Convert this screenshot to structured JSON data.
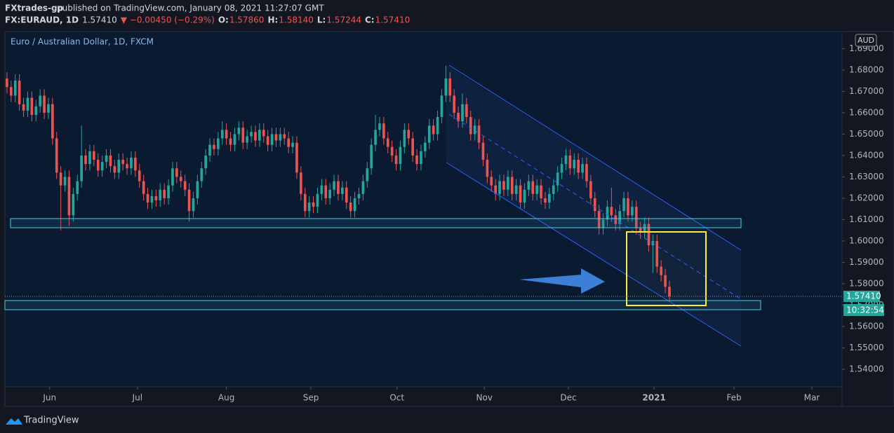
{
  "header": {
    "author": "FXtrades-gp",
    "published": "published on TradingView.com, January 08, 2021 11:27:07 GMT",
    "symbol": "FX:EURAUD, 1D",
    "last": "1.57410",
    "change": "▼ −0.00450 (−0.29%)",
    "o_label": "O:",
    "o": "1.57860",
    "h_label": "H:",
    "h": "1.58140",
    "l_label": "L:",
    "l": "1.57244",
    "c_label": "C:",
    "c": "1.57410"
  },
  "footer": {
    "brand": "TradingView"
  },
  "chart_data": {
    "type": "candlestick",
    "title": "Euro / Australian Dollar, 1D, FXCM",
    "currency": "AUD",
    "last_price_label": "1.57410",
    "countdown": "10:32:54",
    "up_color": "#26a69a",
    "down_color": "#ef5350",
    "xlim": [
      -0.5,
      201.7
    ],
    "xticks": [
      {
        "value": 10.3,
        "label": "Jun"
      },
      {
        "value": 31.5,
        "label": "Jul"
      },
      {
        "value": 53,
        "label": "Aug"
      },
      {
        "value": 73.4,
        "label": "Sep"
      },
      {
        "value": 94.2,
        "label": "Oct"
      },
      {
        "value": 115.3,
        "label": "Nov"
      },
      {
        "value": 135.6,
        "label": "Dec"
      },
      {
        "value": 156.3,
        "label": "2021"
      },
      {
        "value": 175.6,
        "label": "Feb"
      },
      {
        "value": 194.4,
        "label": "Mar"
      }
    ],
    "ylim": [
      1.5318,
      1.698
    ],
    "yticks": [
      {
        "value": 1.54,
        "label": "1.54000"
      },
      {
        "value": 1.55,
        "label": "1.55000"
      },
      {
        "value": 1.56,
        "label": "1.56000"
      },
      {
        "value": 1.57,
        "label": "1.57000"
      },
      {
        "value": 1.58,
        "label": "1.58000"
      },
      {
        "value": 1.59,
        "label": "1.59000"
      },
      {
        "value": 1.6,
        "label": "1.60000"
      },
      {
        "value": 1.61,
        "label": "1.61000"
      },
      {
        "value": 1.62,
        "label": "1.62000"
      },
      {
        "value": 1.63,
        "label": "1.63000"
      },
      {
        "value": 1.64,
        "label": "1.64000"
      },
      {
        "value": 1.65,
        "label": "1.65000"
      },
      {
        "value": 1.66,
        "label": "1.66000"
      },
      {
        "value": 1.67,
        "label": "1.67000"
      },
      {
        "value": 1.68,
        "label": "1.68000"
      },
      {
        "value": 1.69,
        "label": "1.69000"
      }
    ],
    "open": [
      1.676,
      1.672,
      1.668,
      1.675,
      1.664,
      1.661,
      1.667,
      1.659,
      1.663,
      1.668,
      1.66,
      1.664,
      1.648,
      1.632,
      1.626,
      1.63,
      1.612,
      1.622,
      1.628,
      1.64,
      1.636,
      1.642,
      1.638,
      1.633,
      1.637,
      1.64,
      1.635,
      1.632,
      1.638,
      1.636,
      1.634,
      1.639,
      1.633,
      1.628,
      1.622,
      1.618,
      1.621,
      1.619,
      1.624,
      1.62,
      1.626,
      1.634,
      1.63,
      1.628,
      1.624,
      1.614,
      1.62,
      1.628,
      1.634,
      1.64,
      1.645,
      1.643,
      1.648,
      1.652,
      1.648,
      1.645,
      1.65,
      1.653,
      1.646,
      1.649,
      1.651,
      1.647,
      1.652,
      1.649,
      1.645,
      1.65,
      1.647,
      1.65,
      1.648,
      1.644,
      1.646,
      1.632,
      1.622,
      1.614,
      1.618,
      1.616,
      1.622,
      1.626,
      1.62,
      1.624,
      1.628,
      1.622,
      1.625,
      1.618,
      1.614,
      1.62,
      1.622,
      1.628,
      1.634,
      1.645,
      1.652,
      1.655,
      1.648,
      1.644,
      1.64,
      1.636,
      1.644,
      1.652,
      1.648,
      1.64,
      1.636,
      1.642,
      1.646,
      1.654,
      1.65,
      1.658,
      1.668,
      1.676,
      1.668,
      1.66,
      1.656,
      1.664,
      1.658,
      1.65,
      1.654,
      1.646,
      1.638,
      1.63,
      1.626,
      1.622,
      1.628,
      1.624,
      1.63,
      1.622,
      1.626,
      1.618,
      1.624,
      1.628,
      1.622,
      1.626,
      1.62,
      1.618,
      1.622,
      1.626,
      1.632,
      1.636,
      1.64,
      1.634,
      1.638,
      1.632,
      1.636,
      1.628,
      1.62,
      1.614,
      1.606,
      1.61,
      1.616,
      1.612,
      1.608,
      1.614,
      1.62,
      1.612,
      1.616,
      1.606,
      1.604,
      1.608,
      1.598,
      1.6,
      1.588,
      1.584,
      1.5786
    ],
    "high": [
      1.679,
      1.675,
      1.678,
      1.678,
      1.667,
      1.67,
      1.67,
      1.666,
      1.671,
      1.671,
      1.667,
      1.667,
      1.651,
      1.635,
      1.633,
      1.633,
      1.625,
      1.631,
      1.654,
      1.643,
      1.645,
      1.645,
      1.641,
      1.64,
      1.643,
      1.643,
      1.638,
      1.641,
      1.641,
      1.639,
      1.642,
      1.642,
      1.636,
      1.631,
      1.625,
      1.624,
      1.624,
      1.627,
      1.627,
      1.629,
      1.637,
      1.637,
      1.633,
      1.631,
      1.627,
      1.623,
      1.631,
      1.637,
      1.643,
      1.648,
      1.648,
      1.651,
      1.656,
      1.655,
      1.651,
      1.653,
      1.656,
      1.656,
      1.652,
      1.654,
      1.654,
      1.655,
      1.655,
      1.652,
      1.653,
      1.653,
      1.653,
      1.653,
      1.651,
      1.649,
      1.649,
      1.635,
      1.625,
      1.621,
      1.621,
      1.625,
      1.629,
      1.629,
      1.627,
      1.631,
      1.631,
      1.628,
      1.628,
      1.621,
      1.623,
      1.625,
      1.631,
      1.637,
      1.648,
      1.659,
      1.658,
      1.658,
      1.651,
      1.647,
      1.643,
      1.647,
      1.655,
      1.655,
      1.651,
      1.643,
      1.645,
      1.649,
      1.657,
      1.657,
      1.661,
      1.671,
      1.682,
      1.679,
      1.671,
      1.663,
      1.669,
      1.667,
      1.661,
      1.657,
      1.657,
      1.649,
      1.641,
      1.633,
      1.629,
      1.631,
      1.631,
      1.633,
      1.633,
      1.629,
      1.629,
      1.627,
      1.631,
      1.631,
      1.629,
      1.629,
      1.623,
      1.625,
      1.629,
      1.635,
      1.639,
      1.643,
      1.643,
      1.641,
      1.641,
      1.639,
      1.639,
      1.631,
      1.623,
      1.617,
      1.613,
      1.619,
      1.625,
      1.615,
      1.617,
      1.623,
      1.623,
      1.619,
      1.619,
      1.609,
      1.611,
      1.611,
      1.603,
      1.603,
      1.591,
      1.587,
      1.5814
    ],
    "low": [
      1.669,
      1.665,
      1.665,
      1.661,
      1.658,
      1.658,
      1.656,
      1.656,
      1.66,
      1.657,
      1.657,
      1.645,
      1.629,
      1.605,
      1.623,
      1.607,
      1.609,
      1.619,
      1.625,
      1.633,
      1.633,
      1.635,
      1.63,
      1.63,
      1.634,
      1.632,
      1.629,
      1.629,
      1.633,
      1.631,
      1.631,
      1.63,
      1.625,
      1.619,
      1.615,
      1.615,
      1.616,
      1.616,
      1.617,
      1.617,
      1.623,
      1.627,
      1.625,
      1.621,
      1.609,
      1.611,
      1.617,
      1.625,
      1.631,
      1.637,
      1.64,
      1.64,
      1.645,
      1.645,
      1.642,
      1.642,
      1.647,
      1.643,
      1.643,
      1.646,
      1.644,
      1.644,
      1.646,
      1.642,
      1.642,
      1.644,
      1.644,
      1.645,
      1.641,
      1.641,
      1.629,
      1.619,
      1.611,
      1.611,
      1.613,
      1.613,
      1.619,
      1.617,
      1.617,
      1.621,
      1.619,
      1.619,
      1.615,
      1.611,
      1.611,
      1.617,
      1.619,
      1.625,
      1.631,
      1.642,
      1.649,
      1.645,
      1.641,
      1.637,
      1.633,
      1.633,
      1.641,
      1.645,
      1.637,
      1.633,
      1.633,
      1.639,
      1.643,
      1.647,
      1.647,
      1.655,
      1.665,
      1.665,
      1.657,
      1.653,
      1.653,
      1.655,
      1.647,
      1.647,
      1.643,
      1.635,
      1.627,
      1.623,
      1.619,
      1.619,
      1.621,
      1.621,
      1.619,
      1.619,
      1.615,
      1.615,
      1.621,
      1.619,
      1.619,
      1.617,
      1.615,
      1.615,
      1.619,
      1.623,
      1.629,
      1.633,
      1.631,
      1.631,
      1.629,
      1.629,
      1.625,
      1.617,
      1.611,
      1.603,
      1.603,
      1.607,
      1.609,
      1.605,
      1.605,
      1.611,
      1.609,
      1.609,
      1.603,
      1.601,
      1.601,
      1.595,
      1.585,
      1.585,
      1.581,
      1.5756,
      1.57244
    ],
    "close": [
      1.672,
      1.668,
      1.675,
      1.664,
      1.661,
      1.667,
      1.659,
      1.663,
      1.668,
      1.66,
      1.664,
      1.648,
      1.632,
      1.626,
      1.63,
      1.612,
      1.622,
      1.628,
      1.64,
      1.636,
      1.642,
      1.638,
      1.633,
      1.637,
      1.64,
      1.635,
      1.632,
      1.638,
      1.636,
      1.634,
      1.639,
      1.633,
      1.628,
      1.622,
      1.618,
      1.621,
      1.619,
      1.624,
      1.62,
      1.626,
      1.634,
      1.63,
      1.628,
      1.624,
      1.614,
      1.62,
      1.628,
      1.634,
      1.64,
      1.645,
      1.643,
      1.648,
      1.652,
      1.648,
      1.645,
      1.65,
      1.653,
      1.646,
      1.649,
      1.651,
      1.647,
      1.652,
      1.649,
      1.645,
      1.65,
      1.647,
      1.65,
      1.648,
      1.644,
      1.646,
      1.632,
      1.622,
      1.614,
      1.618,
      1.616,
      1.622,
      1.626,
      1.62,
      1.624,
      1.628,
      1.622,
      1.625,
      1.618,
      1.614,
      1.62,
      1.622,
      1.628,
      1.634,
      1.645,
      1.652,
      1.655,
      1.648,
      1.644,
      1.64,
      1.636,
      1.644,
      1.652,
      1.648,
      1.64,
      1.636,
      1.642,
      1.646,
      1.654,
      1.65,
      1.658,
      1.668,
      1.676,
      1.668,
      1.66,
      1.656,
      1.664,
      1.658,
      1.65,
      1.654,
      1.646,
      1.638,
      1.63,
      1.626,
      1.622,
      1.628,
      1.624,
      1.63,
      1.622,
      1.626,
      1.618,
      1.624,
      1.628,
      1.622,
      1.626,
      1.62,
      1.618,
      1.622,
      1.626,
      1.632,
      1.636,
      1.64,
      1.634,
      1.638,
      1.632,
      1.636,
      1.628,
      1.62,
      1.614,
      1.606,
      1.61,
      1.616,
      1.612,
      1.608,
      1.614,
      1.62,
      1.612,
      1.616,
      1.606,
      1.604,
      1.608,
      1.598,
      1.6,
      1.588,
      1.584,
      1.5786,
      1.5741
    ]
  }
}
